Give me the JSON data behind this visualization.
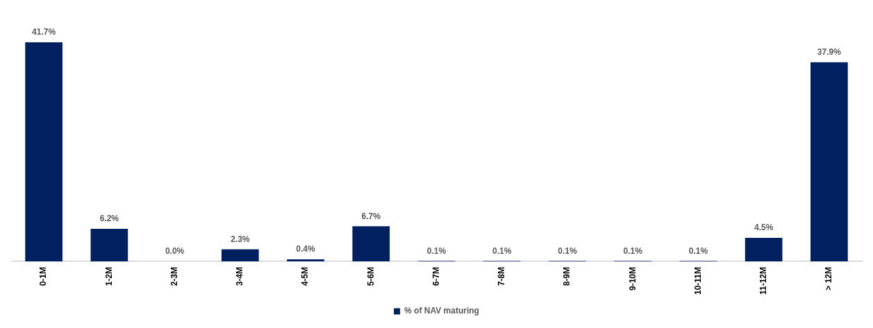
{
  "chart_data": {
    "type": "bar",
    "categories": [
      "0-1M",
      "1-2M",
      "2-3M",
      "3-4M",
      "4-5M",
      "5-6M",
      "6-7M",
      "7-8M",
      "8-9M",
      "9-10M",
      "10-11M",
      "11-12M",
      "> 12M"
    ],
    "series": [
      {
        "name": "% of NAV maturing",
        "color": "#002060",
        "values": [
          41.7,
          6.2,
          0.0,
          2.3,
          0.4,
          6.7,
          0.1,
          0.1,
          0.1,
          0.1,
          0.1,
          4.5,
          37.9
        ],
        "value_labels": [
          "41.7%",
          "6.2%",
          "0.0%",
          "2.3%",
          "0.4%",
          "6.7%",
          "0.1%",
          "0.1%",
          "0.1%",
          "0.1%",
          "0.1%",
          "4.5%",
          "37.9%"
        ]
      }
    ],
    "legend": "bottom",
    "grid": false,
    "tick_labels": "x"
  }
}
